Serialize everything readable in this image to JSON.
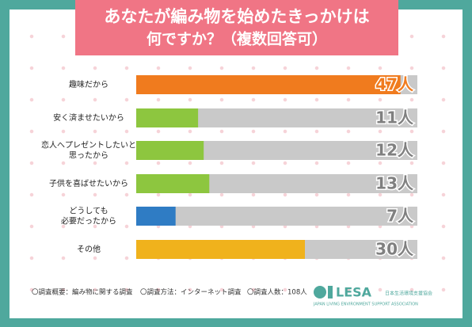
{
  "chart_data": {
    "type": "bar",
    "orientation": "horizontal",
    "title": [
      "あなたが編み物を始めたきっかけは",
      "何ですか？（複数回答可）"
    ],
    "categories": [
      "趣味だから",
      "安く済ませたいから",
      "恋人へプレゼントしたいと\n思ったから",
      "子供を喜ばせたいから",
      "どうしても\n必要だったから",
      "その他"
    ],
    "values": [
      47,
      11,
      12,
      13,
      7,
      30
    ],
    "value_labels": [
      "47人",
      "11人",
      "12人",
      "13人",
      "7人",
      "30人"
    ],
    "colors": [
      "#f07b1e",
      "#8dc63f",
      "#8dc63f",
      "#8dc63f",
      "#2f7cc4",
      "#f0b21c"
    ],
    "track_color": "#c9c9c9",
    "xlim": [
      0,
      50
    ],
    "notes": [
      "〇調査概要：編み物に関する調査",
      "〇調査方法：インターネット調査",
      "〇調査人数：108人"
    ],
    "logo": {
      "name": "LESA",
      "org_ja": "日本生活環境支援協会",
      "org_en": "JAPAN LIVING ENVIRONMENT SUPPORT ASSOCIATION"
    }
  }
}
